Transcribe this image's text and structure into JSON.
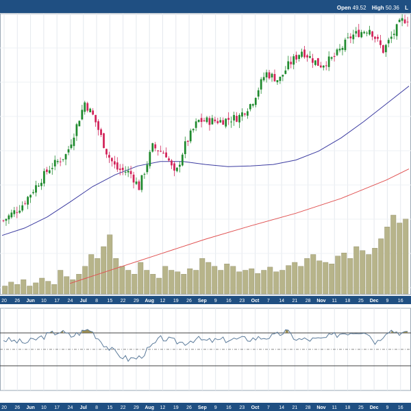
{
  "quote_bar": {
    "open_label": "Open",
    "open_value": "49.52",
    "high_label": "High",
    "high_value": "50.36",
    "trailing": "L"
  },
  "colors": {
    "header": "#1f4f82",
    "axis_band": "#1f4f82",
    "up_candle": "#1f8a2e",
    "down_candle": "#d2245a",
    "sma_fast": "#3a3aa0",
    "sma_slow": "#e05050",
    "volume": "#b7b48a",
    "rsi_line": "#5a7a9a",
    "rsi_fill": "#8a7a3a"
  },
  "chart_data": [
    {
      "type": "candlestick",
      "title": "",
      "x_tick_labels": [
        "20",
        "26",
        "Jun",
        "10",
        "17",
        "24",
        "Jul",
        "8",
        "15",
        "22",
        "29",
        "Aug",
        "12",
        "19",
        "26",
        "Sep",
        "9",
        "16",
        "23",
        "Oct",
        "7",
        "14",
        "21",
        "28",
        "Nov",
        "11",
        "18",
        "25",
        "Dec",
        "9",
        "16"
      ],
      "month_labels": [
        "Jun",
        "Jul",
        "Aug",
        "Sep",
        "Oct",
        "Nov",
        "Dec"
      ],
      "grid": true,
      "overlays": [
        {
          "name": "",
          "kind": "moving-average",
          "color": "#3a3aa0",
          "values": [
            [
              0,
              36
            ],
            [
              10,
              37
            ],
            [
              20,
              38.5
            ],
            [
              30,
              40.5
            ],
            [
              40,
              42.6
            ],
            [
              50,
              44.2
            ],
            [
              60,
              45.4
            ],
            [
              70,
              46
            ],
            [
              80,
              46
            ],
            [
              90,
              45.6
            ],
            [
              100,
              45.3
            ],
            [
              110,
              45.4
            ],
            [
              120,
              45.6
            ],
            [
              130,
              46.2
            ],
            [
              140,
              47.4
            ],
            [
              150,
              49.2
            ],
            [
              160,
              51.4
            ],
            [
              170,
              53.8
            ],
            [
              180,
              56.2
            ]
          ]
        },
        {
          "name": "",
          "kind": "moving-average",
          "color": "#e05050",
          "values": [
            [
              30,
              29.5
            ],
            [
              50,
              31.5
            ],
            [
              70,
              33.5
            ],
            [
              90,
              35.5
            ],
            [
              110,
              37.3
            ],
            [
              130,
              39
            ],
            [
              150,
              41
            ],
            [
              170,
              43.5
            ],
            [
              180,
              45
            ]
          ]
        }
      ]
    },
    {
      "type": "bar",
      "name": "volume",
      "values_relative": [
        0.1,
        0.15,
        0.12,
        0.18,
        0.1,
        0.14,
        0.2,
        0.16,
        0.12,
        0.3,
        0.22,
        0.18,
        0.25,
        0.35,
        0.5,
        0.45,
        0.6,
        0.75,
        0.45,
        0.35,
        0.3,
        0.25,
        0.4,
        0.3,
        0.25,
        0.2,
        0.35,
        0.3,
        0.28,
        0.25,
        0.32,
        0.3,
        0.45,
        0.4,
        0.35,
        0.3,
        0.38,
        0.35,
        0.28,
        0.3,
        0.32,
        0.26,
        0.3,
        0.34,
        0.28,
        0.3,
        0.36,
        0.4,
        0.35,
        0.45,
        0.5,
        0.42,
        0.4,
        0.38,
        0.48,
        0.52,
        0.45,
        0.6,
        0.55,
        0.5,
        0.58,
        0.7,
        0.85,
        1.0,
        0.9,
        0.95
      ]
    },
    {
      "type": "line",
      "name": "oscillator",
      "upper_level": 70,
      "lower_level": 30,
      "mid_level": 50
    }
  ]
}
